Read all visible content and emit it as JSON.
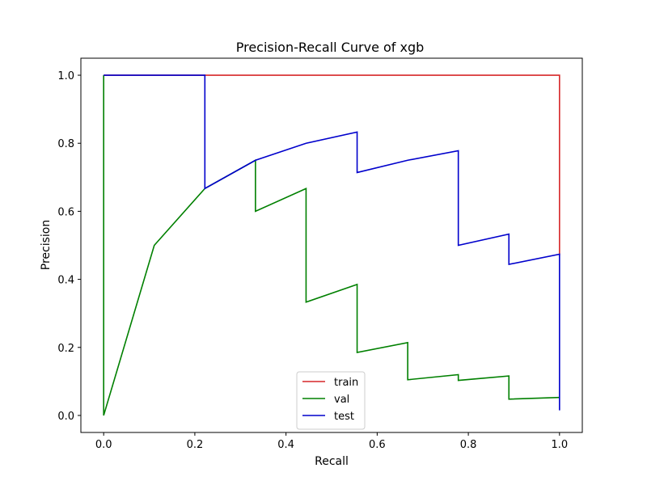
{
  "chart_data": {
    "type": "line",
    "title": "Precision-Recall Curve of xgb",
    "xlabel": "Recall",
    "ylabel": "Precision",
    "xlim": [
      -0.05,
      1.05
    ],
    "ylim": [
      -0.05,
      1.05
    ],
    "xticks": [
      0.0,
      0.2,
      0.4,
      0.6,
      0.8,
      1.0
    ],
    "xtick_labels": [
      "0.0",
      "0.2",
      "0.4",
      "0.6",
      "0.8",
      "1.0"
    ],
    "yticks": [
      0.0,
      0.2,
      0.4,
      0.6,
      0.8,
      1.0
    ],
    "ytick_labels": [
      "0.0",
      "0.2",
      "0.4",
      "0.6",
      "0.8",
      "1.0"
    ],
    "grid": false,
    "legend_position": "bottom-center",
    "series": [
      {
        "name": "train",
        "color": "#d62728",
        "points": [
          [
            0.0,
            1.0
          ],
          [
            1.0,
            1.0
          ],
          [
            1.0,
            0.47
          ]
        ]
      },
      {
        "name": "val",
        "color": "#008000",
        "points": [
          [
            0.0,
            0.0
          ],
          [
            0.0,
            1.0
          ],
          [
            0.0,
            0.0
          ],
          [
            0.111,
            0.5
          ],
          [
            0.222,
            0.667
          ],
          [
            0.333,
            0.75
          ],
          [
            0.333,
            0.6
          ],
          [
            0.444,
            0.667
          ],
          [
            0.444,
            0.333
          ],
          [
            0.556,
            0.385
          ],
          [
            0.556,
            0.185
          ],
          [
            0.667,
            0.214
          ],
          [
            0.667,
            0.105
          ],
          [
            0.778,
            0.12
          ],
          [
            0.778,
            0.103
          ],
          [
            0.889,
            0.116
          ],
          [
            0.889,
            0.048
          ],
          [
            1.0,
            0.053
          ]
        ]
      },
      {
        "name": "test",
        "color": "#0000cc",
        "points": [
          [
            0.0,
            1.0
          ],
          [
            0.222,
            1.0
          ],
          [
            0.222,
            0.667
          ],
          [
            0.333,
            0.75
          ],
          [
            0.444,
            0.8
          ],
          [
            0.556,
            0.833
          ],
          [
            0.556,
            0.714
          ],
          [
            0.667,
            0.75
          ],
          [
            0.778,
            0.778
          ],
          [
            0.778,
            0.5
          ],
          [
            0.889,
            0.533
          ],
          [
            0.889,
            0.444
          ],
          [
            1.0,
            0.474
          ],
          [
            1.0,
            0.015
          ]
        ]
      }
    ]
  }
}
